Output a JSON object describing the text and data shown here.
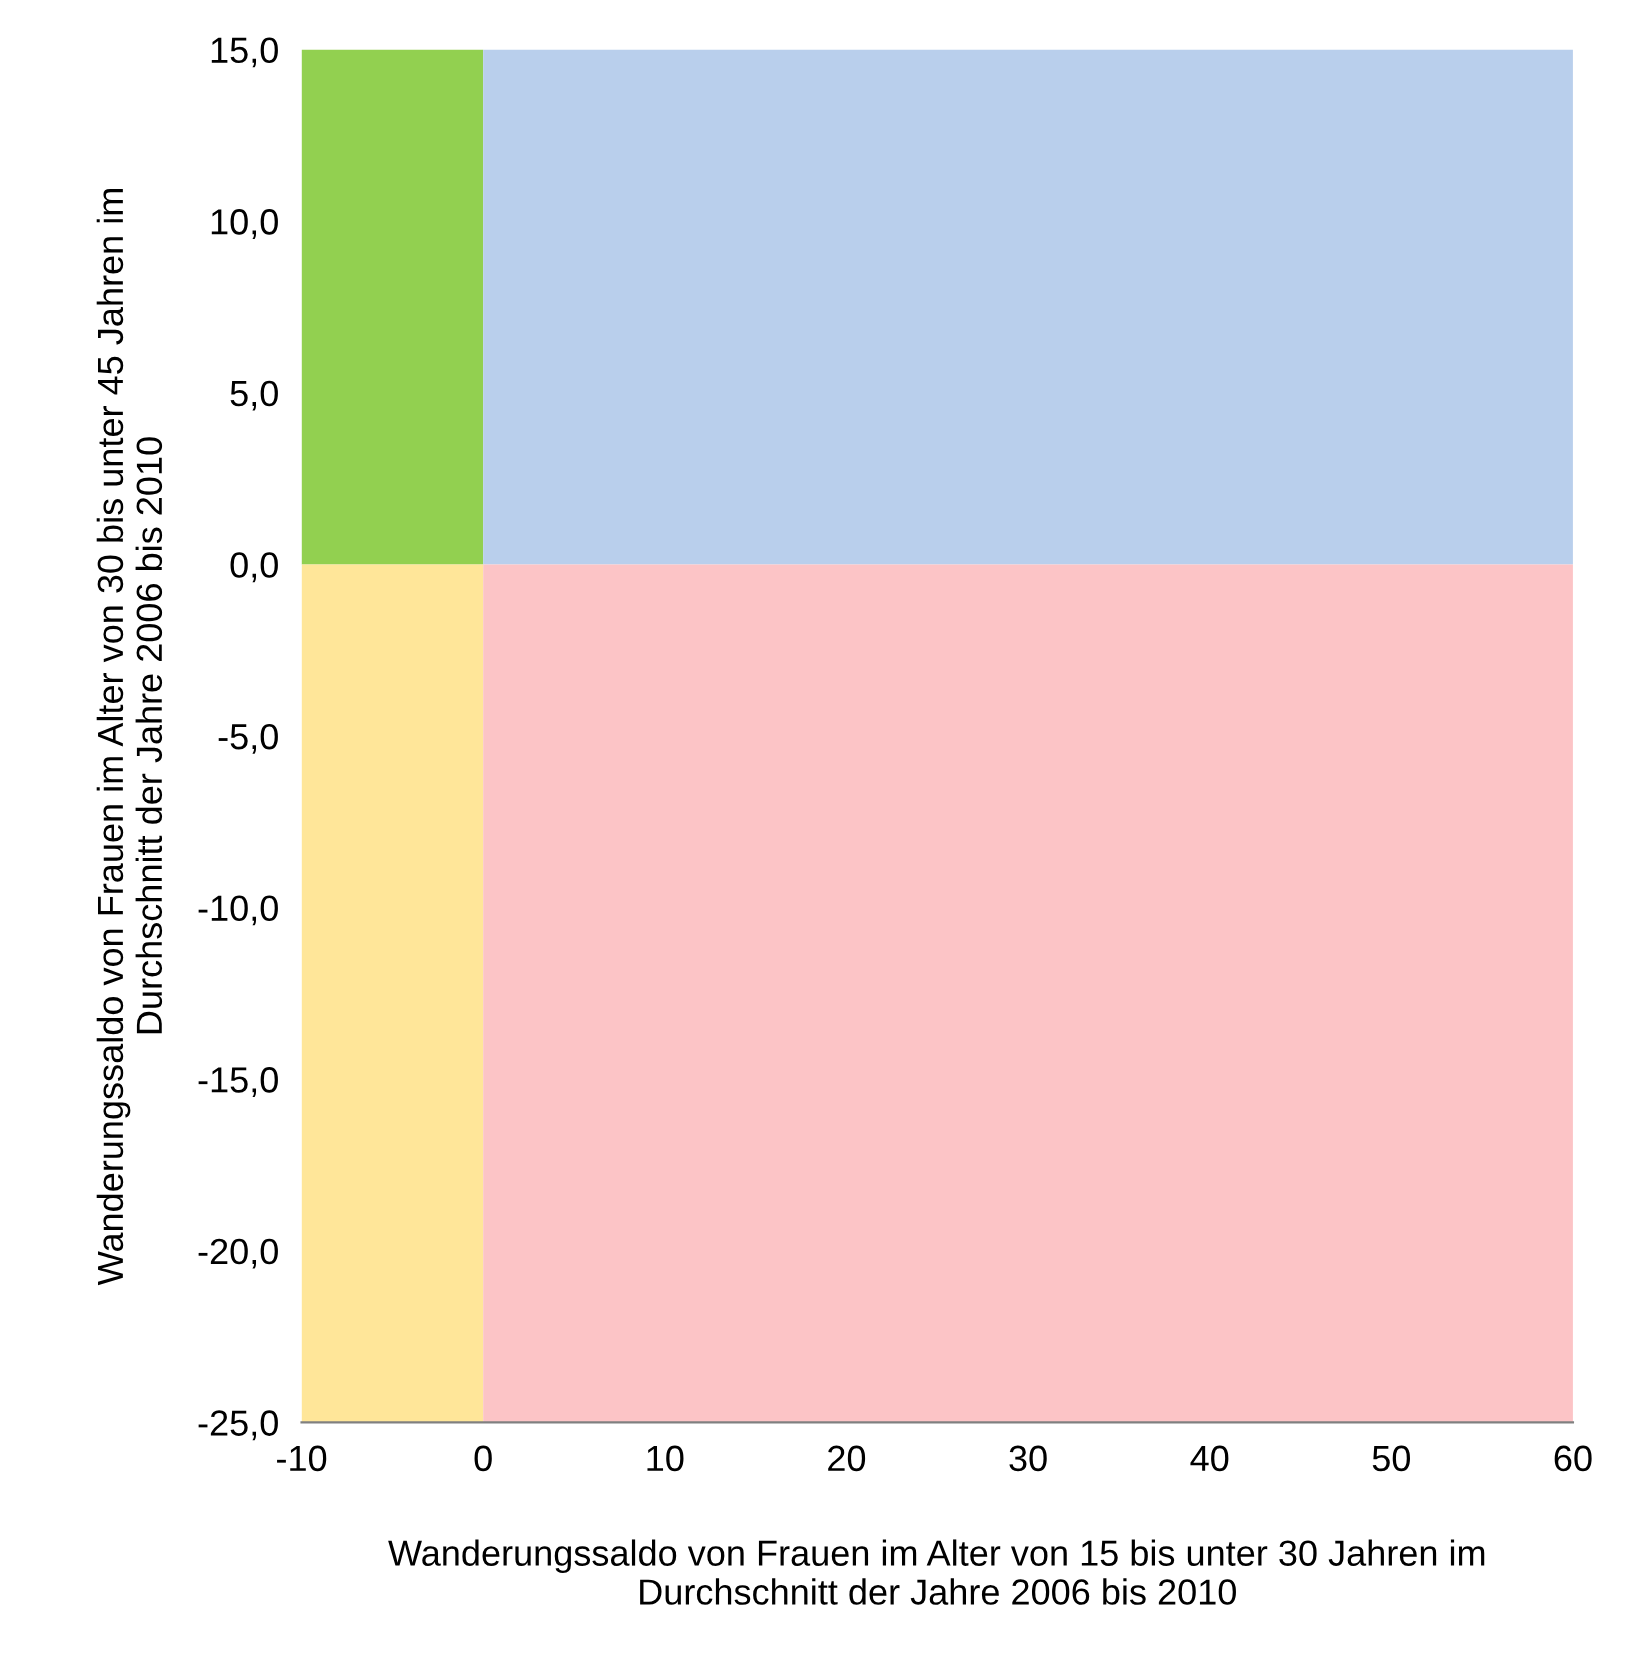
{
  "chart_data": {
    "type": "area",
    "xlabel": "Wanderungssaldo von Frauen im Alter von 15 bis unter 30 Jahren im\nDurchschnitt der Jahre 2006 bis 2010",
    "ylabel": "Wanderungssaldo von Frauen im Alter von 30 bis unter 45 Jahren im\nDurchschnitt der Jahre 2006 bis 2010",
    "series": [
      {
        "color": "#92d050",
        "x": [
          -10,
          0
        ],
        "values": [
          15,
          15
        ]
      },
      {
        "color": "#ffe699",
        "x": [
          -10,
          0
        ],
        "values": [
          -25,
          -25
        ]
      },
      {
        "color": "#b9cfec",
        "x": [
          0,
          60
        ],
        "values": [
          15,
          15
        ]
      },
      {
        "color": "#fcc4c6",
        "x": [
          0,
          60
        ],
        "values": [
          -25,
          -25
        ]
      }
    ],
    "xlim": [
      -10,
      60
    ],
    "xticks": [
      -10,
      0,
      10,
      20,
      30,
      40,
      50,
      60
    ],
    "ylim": [
      -25,
      15
    ],
    "yticks": [
      {
        "value": -25,
        "label": "-25,0"
      },
      {
        "value": -20,
        "label": "-20,0"
      },
      {
        "value": -15,
        "label": "-15,0"
      },
      {
        "value": -10,
        "label": "-10,0"
      },
      {
        "value": -5,
        "label": "-5,0"
      },
      {
        "value": 0,
        "label": "0,0"
      },
      {
        "value": 5,
        "label": "5,0"
      },
      {
        "value": 10,
        "label": "10,0"
      },
      {
        "value": 15,
        "label": "15,0"
      }
    ],
    "grid": false,
    "legend": false
  }
}
